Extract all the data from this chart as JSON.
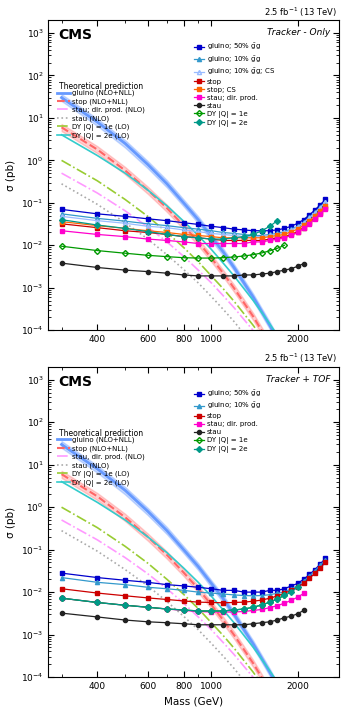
{
  "lumi_label": "2.5 fb$^{-1}$ (13 TeV)",
  "cms_label": "CMS",
  "panel1_title": "Tracker - Only",
  "panel2_title": "Tracker + TOF",
  "xlabel": "Mass (GeV)",
  "ylabel": "σ (pb)",
  "xlim": [
    270,
    2700
  ],
  "ylim": [
    0.0001,
    2000.0
  ],
  "mass_theory": [
    300,
    400,
    500,
    600,
    700,
    800,
    900,
    1000,
    1100,
    1200,
    1400,
    1600,
    1800,
    2000,
    2200,
    2400,
    2600
  ],
  "gluino_theory": [
    30,
    8.0,
    2.5,
    0.8,
    0.28,
    0.1,
    0.04,
    0.016,
    0.007,
    0.003,
    0.0006,
    0.00013,
    3e-05,
    7.5e-06,
    1.9e-06,
    5e-07,
    1.4e-07
  ],
  "gluino_theory_up": [
    36,
    9.6,
    3.0,
    0.96,
    0.34,
    0.12,
    0.048,
    0.019,
    0.0084,
    0.0036,
    0.00072,
    0.000156,
    3.6e-05,
    9e-06,
    2.28e-06,
    6e-07,
    1.68e-07
  ],
  "gluino_theory_dn": [
    25,
    6.5,
    2.0,
    0.65,
    0.23,
    0.083,
    0.033,
    0.013,
    0.0057,
    0.0025,
    0.00049,
    0.000106,
    2.45e-05,
    6.1e-06,
    1.55e-06,
    4.1e-07,
    1.15e-07
  ],
  "stop_theory": [
    6.0,
    1.8,
    0.58,
    0.2,
    0.075,
    0.029,
    0.012,
    0.005,
    0.0022,
    0.00098,
    0.00021,
    4.7e-05,
    1.1e-05,
    2.8e-06,
    7.2e-07,
    1.9e-07,
    5.2e-08
  ],
  "stop_theory_up": [
    7.2,
    2.16,
    0.7,
    0.24,
    0.09,
    0.035,
    0.014,
    0.006,
    0.0026,
    0.00118,
    0.000252,
    5.64e-05,
    1.32e-05,
    3.36e-06,
    8.64e-07,
    2.28e-07,
    6.24e-08
  ],
  "stop_theory_dn": [
    4.9,
    1.47,
    0.47,
    0.163,
    0.061,
    0.024,
    0.0098,
    0.0041,
    0.0018,
    0.0008,
    0.000172,
    3.83e-05,
    8.97e-06,
    2.28e-06,
    5.87e-07,
    1.55e-07,
    4.24e-08
  ],
  "stau_dir_theory": [
    0.5,
    0.17,
    0.065,
    0.027,
    0.012,
    0.0055,
    0.0026,
    0.0013,
    0.00065,
    0.00034,
    9.8e-05,
    3e-05,
    9.5e-06,
    3.1e-06,
    1e-06,
    3.5e-07,
    1.2e-07
  ],
  "stau_nlo_theory": [
    0.28,
    0.092,
    0.034,
    0.014,
    0.006,
    0.0027,
    0.0013,
    0.00062,
    0.00031,
    0.00016,
    4.4e-05,
    1.3e-05,
    4e-06,
    1.3e-06,
    4.2e-07,
    1.4e-07,
    4.8e-08
  ],
  "dy1e_theory": [
    1.0,
    0.33,
    0.12,
    0.048,
    0.02,
    0.0089,
    0.0041,
    0.0019,
    0.00095,
    0.00048,
    0.00013,
    3.8e-05,
    1.2e-05,
    3.7e-06,
    1.2e-06,
    3.9e-07,
    1.3e-07
  ],
  "dy2e_theory": [
    4.0,
    1.3,
    0.5,
    0.2,
    0.085,
    0.037,
    0.017,
    0.008,
    0.0038,
    0.0019,
    0.0005,
    0.00014,
    4.3e-05,
    1.3e-05,
    4.1e-06,
    1.3e-06,
    4.2e-07
  ],
  "mass_obs": [
    300,
    400,
    500,
    600,
    700,
    800,
    900,
    1000,
    1100,
    1200,
    1300,
    1400,
    1500,
    1600,
    1700,
    1800,
    1900,
    2000,
    2100,
    2200,
    2300,
    2400,
    2500
  ],
  "gluino50_tr": [
    0.07,
    0.055,
    0.048,
    0.042,
    0.038,
    0.034,
    0.031,
    0.028,
    0.026,
    0.024,
    0.023,
    0.022,
    0.022,
    0.022,
    0.023,
    0.025,
    0.028,
    0.033,
    0.04,
    0.052,
    0.068,
    0.09,
    0.12
  ],
  "gluino10_tr": [
    0.055,
    0.043,
    0.037,
    0.032,
    0.029,
    0.026,
    0.024,
    0.022,
    0.02,
    0.019,
    0.018,
    0.017,
    0.017,
    0.018,
    0.019,
    0.021,
    0.024,
    0.028,
    0.035,
    0.046,
    0.06,
    0.08,
    0.106
  ],
  "gluino10cs_tr": [
    0.048,
    0.038,
    0.033,
    0.028,
    0.026,
    0.023,
    0.021,
    0.019,
    0.018,
    0.017,
    0.016,
    0.016,
    0.016,
    0.017,
    0.018,
    0.02,
    0.023,
    0.027,
    0.034,
    0.044,
    0.058,
    0.077,
    0.102
  ],
  "stop_tr": [
    0.032,
    0.026,
    0.022,
    0.02,
    0.018,
    0.016,
    0.015,
    0.014,
    0.013,
    0.013,
    0.013,
    0.013,
    0.013,
    0.014,
    0.015,
    0.016,
    0.018,
    0.021,
    0.026,
    0.034,
    0.044,
    0.058,
    0.077
  ],
  "stopcs_tr": [
    0.036,
    0.029,
    0.025,
    0.022,
    0.02,
    0.018,
    0.017,
    0.016,
    0.015,
    0.015,
    0.015,
    0.015,
    0.015,
    0.016,
    0.017,
    0.018,
    0.021,
    0.024,
    0.03,
    0.038,
    0.05,
    0.065,
    0.086
  ],
  "stau_dir_tr": [
    0.022,
    0.018,
    0.016,
    0.014,
    0.013,
    0.012,
    0.011,
    0.011,
    0.011,
    0.011,
    0.011,
    0.012,
    0.012,
    0.013,
    0.014,
    0.015,
    0.017,
    0.02,
    0.025,
    0.032,
    0.042,
    0.055,
    0.073
  ],
  "stau_tr": [
    0.0038,
    0.003,
    0.0026,
    0.0024,
    0.0022,
    0.002,
    0.0019,
    0.0019,
    0.0019,
    0.0019,
    0.002,
    0.002,
    0.0021,
    0.0022,
    0.0024,
    0.0026,
    0.0028,
    0.0032,
    0.0037,
    null,
    null,
    null,
    null
  ],
  "dy1e_tr": [
    0.0095,
    0.0075,
    0.0065,
    0.0058,
    0.0054,
    0.0051,
    0.005,
    0.005,
    0.0051,
    0.0053,
    0.0056,
    0.006,
    0.0066,
    0.0074,
    0.0085,
    0.01,
    null,
    null,
    null,
    null,
    null,
    null,
    null
  ],
  "dy2e_tr": [
    0.04,
    0.03,
    0.025,
    0.021,
    0.018,
    0.016,
    0.015,
    0.014,
    0.014,
    0.015,
    0.016,
    0.018,
    0.022,
    0.028,
    0.038,
    null,
    null,
    null,
    null,
    null,
    null,
    null,
    null
  ],
  "gluino50_tof": [
    0.028,
    0.022,
    0.019,
    0.017,
    0.015,
    0.014,
    0.013,
    0.012,
    0.011,
    0.011,
    0.01,
    0.01,
    0.01,
    0.011,
    0.011,
    0.012,
    0.014,
    0.016,
    0.02,
    0.026,
    0.034,
    0.046,
    0.062
  ],
  "gluino10_tof": [
    0.022,
    0.017,
    0.015,
    0.013,
    0.012,
    0.011,
    0.01,
    0.0095,
    0.009,
    0.0086,
    0.0083,
    0.0082,
    0.0083,
    0.0087,
    0.0094,
    0.01,
    0.012,
    0.014,
    0.018,
    0.024,
    0.032,
    0.043,
    0.058
  ],
  "stop_tof": [
    0.012,
    0.0095,
    0.0082,
    0.0073,
    0.0067,
    0.0062,
    0.0058,
    0.0057,
    0.0056,
    0.0057,
    0.0058,
    0.0061,
    0.0065,
    0.0072,
    0.0081,
    0.0094,
    0.011,
    0.013,
    0.016,
    0.021,
    0.028,
    0.037,
    0.05
  ],
  "stau_dir_tof": [
    0.0072,
    0.0057,
    0.0049,
    0.0044,
    0.004,
    0.0037,
    0.0035,
    0.0034,
    0.0034,
    0.0034,
    0.0035,
    0.0037,
    0.0039,
    0.0043,
    0.0048,
    0.0055,
    0.0064,
    0.0076,
    0.0093,
    null,
    null,
    null,
    null
  ],
  "stau_tof": [
    0.0032,
    0.0026,
    0.0022,
    0.002,
    0.0019,
    0.0018,
    0.0017,
    0.0017,
    0.0017,
    0.0017,
    0.0017,
    0.0018,
    0.0019,
    0.002,
    0.0022,
    0.0025,
    0.0027,
    0.0031,
    0.0037,
    null,
    null,
    null,
    null
  ],
  "dy1e_tof": [
    0.0072,
    0.0057,
    0.0049,
    0.0044,
    0.004,
    0.0038,
    0.0036,
    0.0036,
    0.0036,
    0.0038,
    0.004,
    0.0044,
    0.005,
    0.0058,
    0.0069,
    0.0084,
    null,
    null,
    null,
    null,
    null,
    null,
    null
  ],
  "dy2e_tof": [
    0.0072,
    0.0057,
    0.0049,
    0.0044,
    0.004,
    0.0038,
    0.0036,
    0.0036,
    0.0036,
    0.0038,
    0.004,
    0.0044,
    0.005,
    0.0058,
    0.0069,
    0.0084,
    0.01,
    0.013,
    null,
    null,
    null,
    null,
    null
  ],
  "colors": {
    "gluino_theory": "#6699ff",
    "stop_theory": "#ff6666",
    "stau_dir_theory": "#ff99ff",
    "stau_nlo": "#aaaaaa",
    "dy1e_theory": "#99cc33",
    "dy2e_theory": "#33cccc",
    "gluino50": "#0000cc",
    "gluino10": "#3399cc",
    "gluino10cs": "#99bbff",
    "stop": "#cc0000",
    "stopcs": "#ff6600",
    "stau_dir": "#ff00cc",
    "stau": "#222222",
    "dy1e": "#009900",
    "dy2e": "#009988"
  }
}
